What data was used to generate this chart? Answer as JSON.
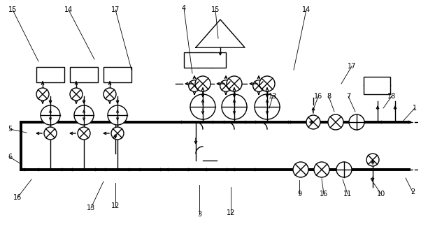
{
  "bg_color": "#ffffff",
  "lc": "#000000",
  "thick_lw": 2.8,
  "thin_lw": 1.0,
  "r_big": 0.03,
  "r_sml": 0.018,
  "figw": 6.02,
  "figh": 3.41,
  "dpi": 100
}
